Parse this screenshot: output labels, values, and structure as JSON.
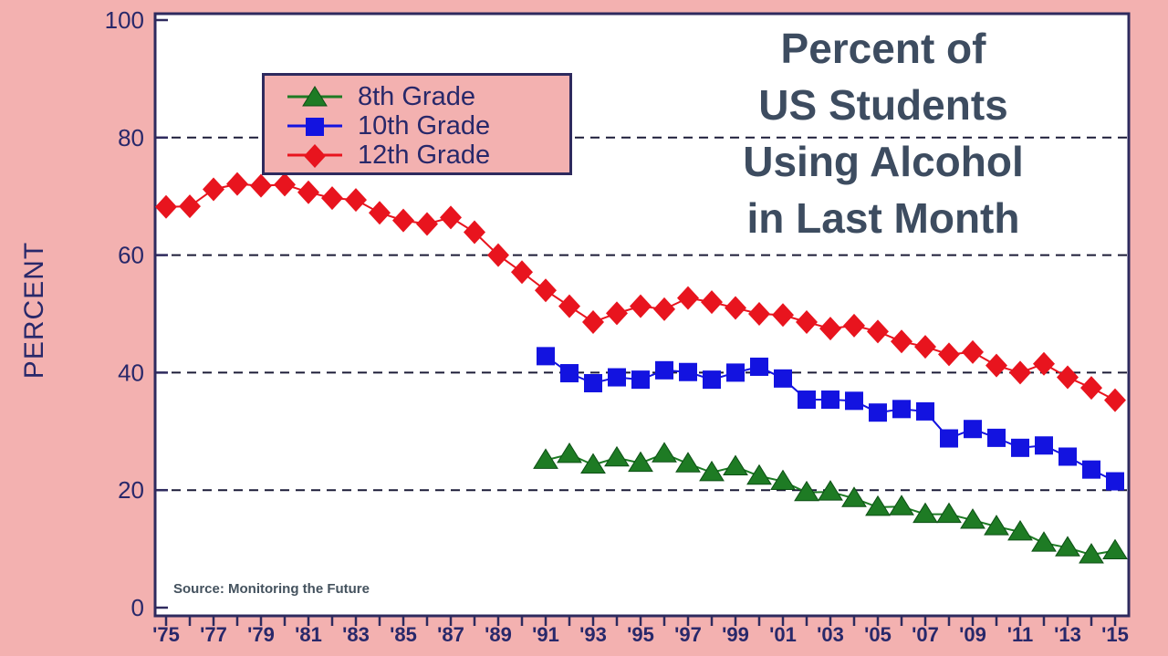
{
  "title": {
    "lines": [
      "Percent of",
      "US Students",
      "Using Alcohol",
      "in Last Month"
    ]
  },
  "y_axis": {
    "label": "PERCENT",
    "ticks": [
      0,
      20,
      40,
      60,
      80,
      100
    ]
  },
  "x_axis": {
    "tick_labels": [
      "'75",
      "'77",
      "'79",
      "'81",
      "'83",
      "'85",
      "'87",
      "'89",
      "'91",
      "'93",
      "'95",
      "'97",
      "'99",
      "'01",
      "'03",
      "'05",
      "'07",
      "'09",
      "'11",
      "'13",
      "'15"
    ]
  },
  "legend": {
    "items": [
      {
        "label": "8th Grade",
        "marker": "triangle",
        "color": "#1e7b24"
      },
      {
        "label": "10th Grade",
        "marker": "square",
        "color": "#1313e0"
      },
      {
        "label": "12th Grade",
        "marker": "diamond",
        "color": "#e8141e"
      }
    ]
  },
  "source": {
    "text": "Source: Monitoring the Future"
  },
  "colors": {
    "background": "#f3b1b0",
    "plot_background": "#ffffff",
    "frame": "#2e2a5e",
    "axis_text": "#28286a",
    "gridline": "#1c1c38",
    "title_text": "#3d4c60",
    "red": "#e8141e",
    "blue": "#1313e0",
    "green": "#1e7b24",
    "source_text": "#44525e"
  },
  "chart_data": {
    "type": "line",
    "title": "Percent of US Students Using Alcohol in Last Month",
    "xlabel": "",
    "ylabel": "PERCENT",
    "ylim": [
      0,
      100
    ],
    "x_range_years": [
      1975,
      2015
    ],
    "y_ticks": [
      0,
      20,
      40,
      60,
      80,
      100
    ],
    "gridlines_at": [
      20,
      40,
      60,
      80
    ],
    "grid_style": "horizontal dashed",
    "legend_position": "upper left",
    "source": "Source: Monitoring the Future",
    "series": [
      {
        "name": "8th Grade",
        "marker": "triangle",
        "color": "#1e7b24",
        "start_year": 1991,
        "values": [
          25.1,
          26.1,
          24.3,
          25.5,
          24.6,
          26.2,
          24.5,
          23.0,
          24.0,
          22.4,
          21.5,
          19.6,
          19.7,
          18.6,
          17.1,
          17.2,
          15.9,
          15.9,
          14.9,
          13.8,
          12.9,
          11.0,
          10.2,
          9.0,
          9.7
        ]
      },
      {
        "name": "10th Grade",
        "marker": "square",
        "color": "#1313e0",
        "start_year": 1991,
        "values": [
          42.8,
          39.9,
          38.2,
          39.2,
          38.8,
          40.4,
          40.1,
          38.8,
          40.0,
          41.0,
          39.0,
          35.4,
          35.4,
          35.2,
          33.2,
          33.8,
          33.4,
          28.8,
          30.4,
          28.9,
          27.2,
          27.6,
          25.7,
          23.5,
          21.5
        ]
      },
      {
        "name": "12th Grade",
        "marker": "diamond",
        "color": "#e8141e",
        "start_year": 1975,
        "values": [
          68.2,
          68.3,
          71.2,
          72.1,
          71.8,
          72.0,
          70.7,
          69.7,
          69.4,
          67.2,
          65.9,
          65.3,
          66.4,
          63.9,
          60.0,
          57.1,
          54.0,
          51.3,
          48.6,
          50.1,
          51.3,
          50.8,
          52.7,
          52.0,
          51.0,
          50.0,
          49.8,
          48.6,
          47.5,
          48.0,
          47.0,
          45.3,
          44.4,
          43.1,
          43.5,
          41.2,
          40.0,
          41.5,
          39.2,
          37.4,
          35.3
        ]
      }
    ]
  }
}
